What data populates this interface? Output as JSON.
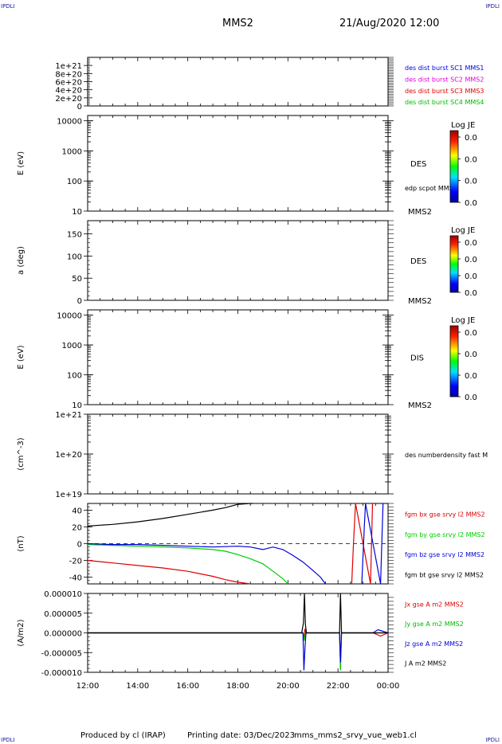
{
  "header": {
    "title": "MMS2",
    "datetime": "21/Aug/2020 12:00",
    "corner_label": "IPDLI"
  },
  "footer": {
    "produced_by": "Produced by cl (IRAP)",
    "printing_date": "Printing date: 03/Dec/2023",
    "filename": "mms_mms2_srvy_vue_web1.cl"
  },
  "colors": {
    "c1": "#0000dd",
    "c2": "#dd00dd",
    "c3": "#dd0000",
    "c4": "#00bb00",
    "bx": "#dd0000",
    "by": "#00cc00",
    "bz": "#0000dd",
    "bt": "#000000"
  },
  "chart_data": [
    {
      "type": "line",
      "ylog": false,
      "ylim": [
        0,
        1.2e+21
      ],
      "yticks": [
        "0",
        "2e+20",
        "4e+20",
        "6e+20",
        "8e+20",
        "1e+21"
      ],
      "ytick_values": [
        0,
        2e+20,
        4e+20,
        6e+20,
        8e+20,
        1e+21
      ],
      "dashed_zero": true,
      "ylabel": "",
      "series": [
        {
          "name": "des dist burst SC1 MMS1",
          "color": "#0000dd",
          "x": [],
          "values": []
        },
        {
          "name": "des dist burst SC2 MMS2",
          "color": "#dd00dd",
          "x": [],
          "values": []
        },
        {
          "name": "des dist burst SC3 MMS3",
          "color": "#dd0000",
          "x": [],
          "values": []
        },
        {
          "name": "des dist burst SC4 MMS4",
          "color": "#00bb00",
          "x": [],
          "values": []
        }
      ]
    },
    {
      "type": "heatmap",
      "ylog": true,
      "ylim": [
        10,
        15000
      ],
      "yticks": [
        "10",
        "100",
        "1000",
        "10000"
      ],
      "ytick_values": [
        10,
        100,
        1000,
        10000
      ],
      "ylabel": "E (eV)",
      "label": "DES",
      "extra_label": "edp scpot MMS2",
      "sub_label": "MMS2",
      "colorbar": {
        "title": "Log JE",
        "ticks": [
          "0.0",
          "0.0",
          "0.0",
          "0.0"
        ]
      }
    },
    {
      "type": "heatmap",
      "ylog": false,
      "ylim": [
        0,
        180
      ],
      "yticks": [
        "0",
        "50",
        "100",
        "150"
      ],
      "ytick_values": [
        0,
        50,
        100,
        150
      ],
      "ylabel": "a (deg)",
      "label": "DES",
      "sub_label": "MMS2",
      "colorbar": {
        "title": "Log JE",
        "ticks": [
          "0.0",
          "0.0",
          "0.0",
          "0.0"
        ]
      }
    },
    {
      "type": "heatmap",
      "ylog": true,
      "ylim": [
        10,
        15000
      ],
      "yticks": [
        "10",
        "100",
        "1000",
        "10000"
      ],
      "ytick_values": [
        10,
        100,
        1000,
        10000
      ],
      "ylabel": "E (eV)",
      "label": "DIS",
      "sub_label": "MMS2",
      "colorbar": {
        "title": "Log JE",
        "ticks": [
          "0.0",
          "0.0",
          "0.0",
          "0.0"
        ]
      }
    },
    {
      "type": "line",
      "ylog": true,
      "ylim": [
        1e+19,
        1e+21
      ],
      "yticks": [
        "1e+19",
        "1e+20",
        "1e+21"
      ],
      "ytick_values": [
        1e+19,
        1e+20,
        1e+21
      ],
      "ylabel": "(cm^-3)",
      "series": [
        {
          "name": "des numberdensity fast M",
          "color": "#000000",
          "x": [],
          "values": []
        }
      ]
    },
    {
      "type": "line",
      "ylog": false,
      "ylim": [
        -48,
        48
      ],
      "yticks": [
        "-40",
        "-20",
        "0",
        "20",
        "40"
      ],
      "ytick_values": [
        -40,
        -20,
        0,
        20,
        40
      ],
      "dashed_zero": true,
      "ylabel": "(nT)",
      "series": [
        {
          "name": "fgm bx gse srvy l2 MMS2",
          "color": "#dd0000",
          "x": [
            12.0,
            13.0,
            14.0,
            15.0,
            16.0,
            16.5,
            17.0,
            17.5,
            18.0,
            18.5,
            18.6,
            22.55,
            22.62,
            22.7,
            23.3,
            23.38
          ],
          "values": [
            -20,
            -23,
            -26,
            -29,
            -33,
            -36,
            -39,
            -43,
            -46,
            -48,
            null,
            -48,
            0,
            48,
            -48,
            48
          ]
        },
        {
          "name": "fgm by gse srvy l2 MMS2",
          "color": "#00cc00",
          "x": [
            12.0,
            13.0,
            14.0,
            15.0,
            16.0,
            17.0,
            17.5,
            18.0,
            18.5,
            19.0,
            19.5,
            19.8,
            20.0
          ],
          "values": [
            -1,
            -2,
            -3,
            -4,
            -5,
            -7,
            -9,
            -13,
            -18,
            -24,
            -35,
            -42,
            -48
          ]
        },
        {
          "name": "fgm bz gse srvy l2 MMS2",
          "color": "#0000dd",
          "x": [
            12.0,
            13.0,
            14.0,
            15.0,
            16.0,
            17.0,
            18.0,
            18.5,
            19.0,
            19.4,
            19.8,
            20.2,
            20.6,
            21.0,
            21.3,
            21.5,
            21.55,
            22.95,
            23.05,
            23.1,
            23.7,
            23.8
          ],
          "values": [
            0,
            -1,
            -1,
            -2,
            -3,
            -4,
            -3,
            -4,
            -7,
            -4,
            -7,
            -14,
            -22,
            -32,
            -40,
            -48,
            null,
            -48,
            20,
            48,
            -48,
            48
          ]
        },
        {
          "name": "fgm bt gse srvy l2 MMS2",
          "color": "#000000",
          "x": [
            12.0,
            13.0,
            14.0,
            15.0,
            16.0,
            17.0,
            17.5,
            18.0,
            18.5,
            18.6
          ],
          "values": [
            21,
            23,
            26,
            30,
            35,
            40,
            43,
            47,
            49,
            50
          ]
        }
      ]
    },
    {
      "type": "line",
      "ylog": false,
      "ylim": [
        -1e-05,
        1e-05
      ],
      "yticks": [
        "-0.000010",
        "-0.000005",
        "0.000000",
        "0.000005",
        "0.000010"
      ],
      "ytick_values": [
        -1e-05,
        -5e-06,
        0,
        5e-06,
        1e-05
      ],
      "ylabel": "(A/m2)",
      "xticks": [
        "12:00",
        "14:00",
        "16:00",
        "18:00",
        "20:00",
        "22:00",
        "00:00"
      ],
      "xtick_values": [
        12,
        14,
        16,
        18,
        20,
        22,
        24
      ],
      "xlim": [
        12,
        24
      ],
      "series": [
        {
          "name": "Jx gse A m2 MMS2",
          "color": "#dd0000",
          "x": [
            12.0,
            20.6,
            20.64,
            20.68,
            20.72,
            22.06,
            22.1,
            22.14,
            23.4,
            23.7,
            24.0
          ],
          "values": [
            0,
            0,
            -1.5e-06,
            1e-06,
            0,
            0,
            -7e-06,
            0,
            0,
            -8e-07,
            0
          ]
        },
        {
          "name": "Jy gse A m2 MMS2",
          "color": "#00bb00",
          "x": [
            12.0,
            20.6,
            20.65,
            20.7,
            22.06,
            22.1,
            22.14,
            24.0
          ],
          "values": [
            0,
            0,
            -2e-06,
            0,
            0,
            -9.5e-06,
            0,
            0
          ]
        },
        {
          "name": "Jz gse A m2 MMS2",
          "color": "#0000dd",
          "x": [
            12.0,
            20.6,
            20.64,
            20.68,
            20.72,
            22.06,
            22.1,
            22.14,
            23.4,
            23.6,
            24.0
          ],
          "values": [
            0,
            0,
            -9.5e-06,
            -4e-06,
            0,
            0,
            -7.5e-06,
            0,
            0,
            8e-07,
            0
          ]
        },
        {
          "name": "J A m2 MMS2",
          "color": "#000000",
          "x": [
            12.0,
            20.55,
            20.62,
            20.66,
            20.7,
            20.74,
            22.06,
            22.1,
            22.14,
            24.0
          ],
          "values": [
            0,
            0,
            2.5e-06,
            1e-05,
            2e-06,
            0,
            0,
            1e-05,
            0,
            0
          ]
        }
      ]
    }
  ]
}
